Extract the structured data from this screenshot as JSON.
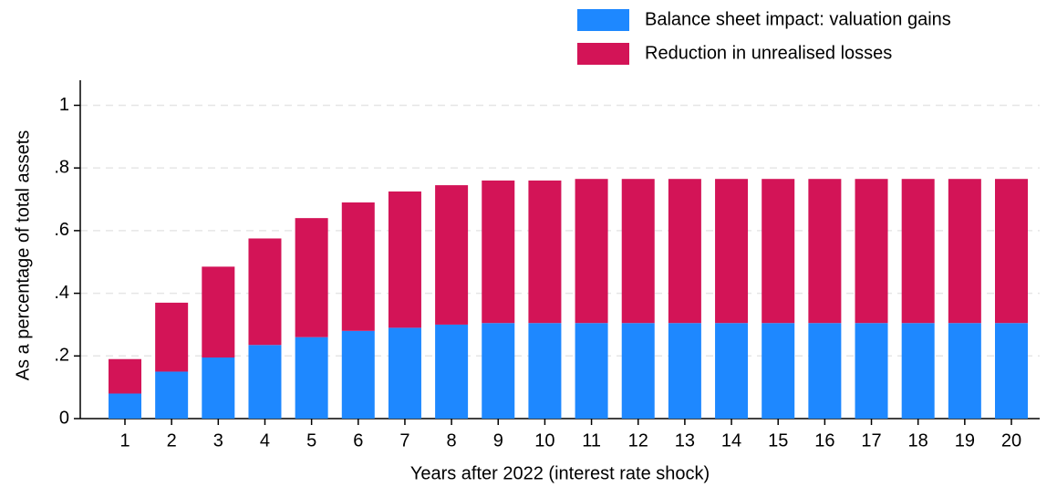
{
  "chart_data": {
    "type": "bar",
    "stacked": true,
    "y_label": "As a percentage of total assets",
    "x_label": "Years after 2022 (interest rate shock)",
    "categories": [
      "1",
      "2",
      "3",
      "4",
      "5",
      "6",
      "7",
      "8",
      "9",
      "10",
      "11",
      "12",
      "13",
      "14",
      "15",
      "16",
      "17",
      "18",
      "19",
      "20"
    ],
    "series": [
      {
        "name": "Balance sheet impact: valuation gains",
        "color": "#1e88ff",
        "values": [
          0.08,
          0.15,
          0.195,
          0.235,
          0.26,
          0.28,
          0.29,
          0.3,
          0.305,
          0.305,
          0.305,
          0.305,
          0.305,
          0.305,
          0.305,
          0.305,
          0.305,
          0.305,
          0.305,
          0.305
        ]
      },
      {
        "name": "Reduction in unrealised losses",
        "color": "#d31457",
        "values": [
          0.11,
          0.22,
          0.29,
          0.34,
          0.38,
          0.41,
          0.435,
          0.445,
          0.455,
          0.455,
          0.46,
          0.46,
          0.46,
          0.46,
          0.46,
          0.46,
          0.46,
          0.46,
          0.46,
          0.46
        ]
      }
    ],
    "ylim": [
      0,
      1.08
    ],
    "yticks": [
      0,
      {
        "value": 0.2,
        "label": ".2"
      },
      {
        "value": 0.4,
        "label": ".4"
      },
      {
        "value": 0.6,
        "label": ".6"
      },
      {
        "value": 0.8,
        "label": ".8"
      },
      1
    ],
    "grid": true,
    "legend": "top-right"
  }
}
